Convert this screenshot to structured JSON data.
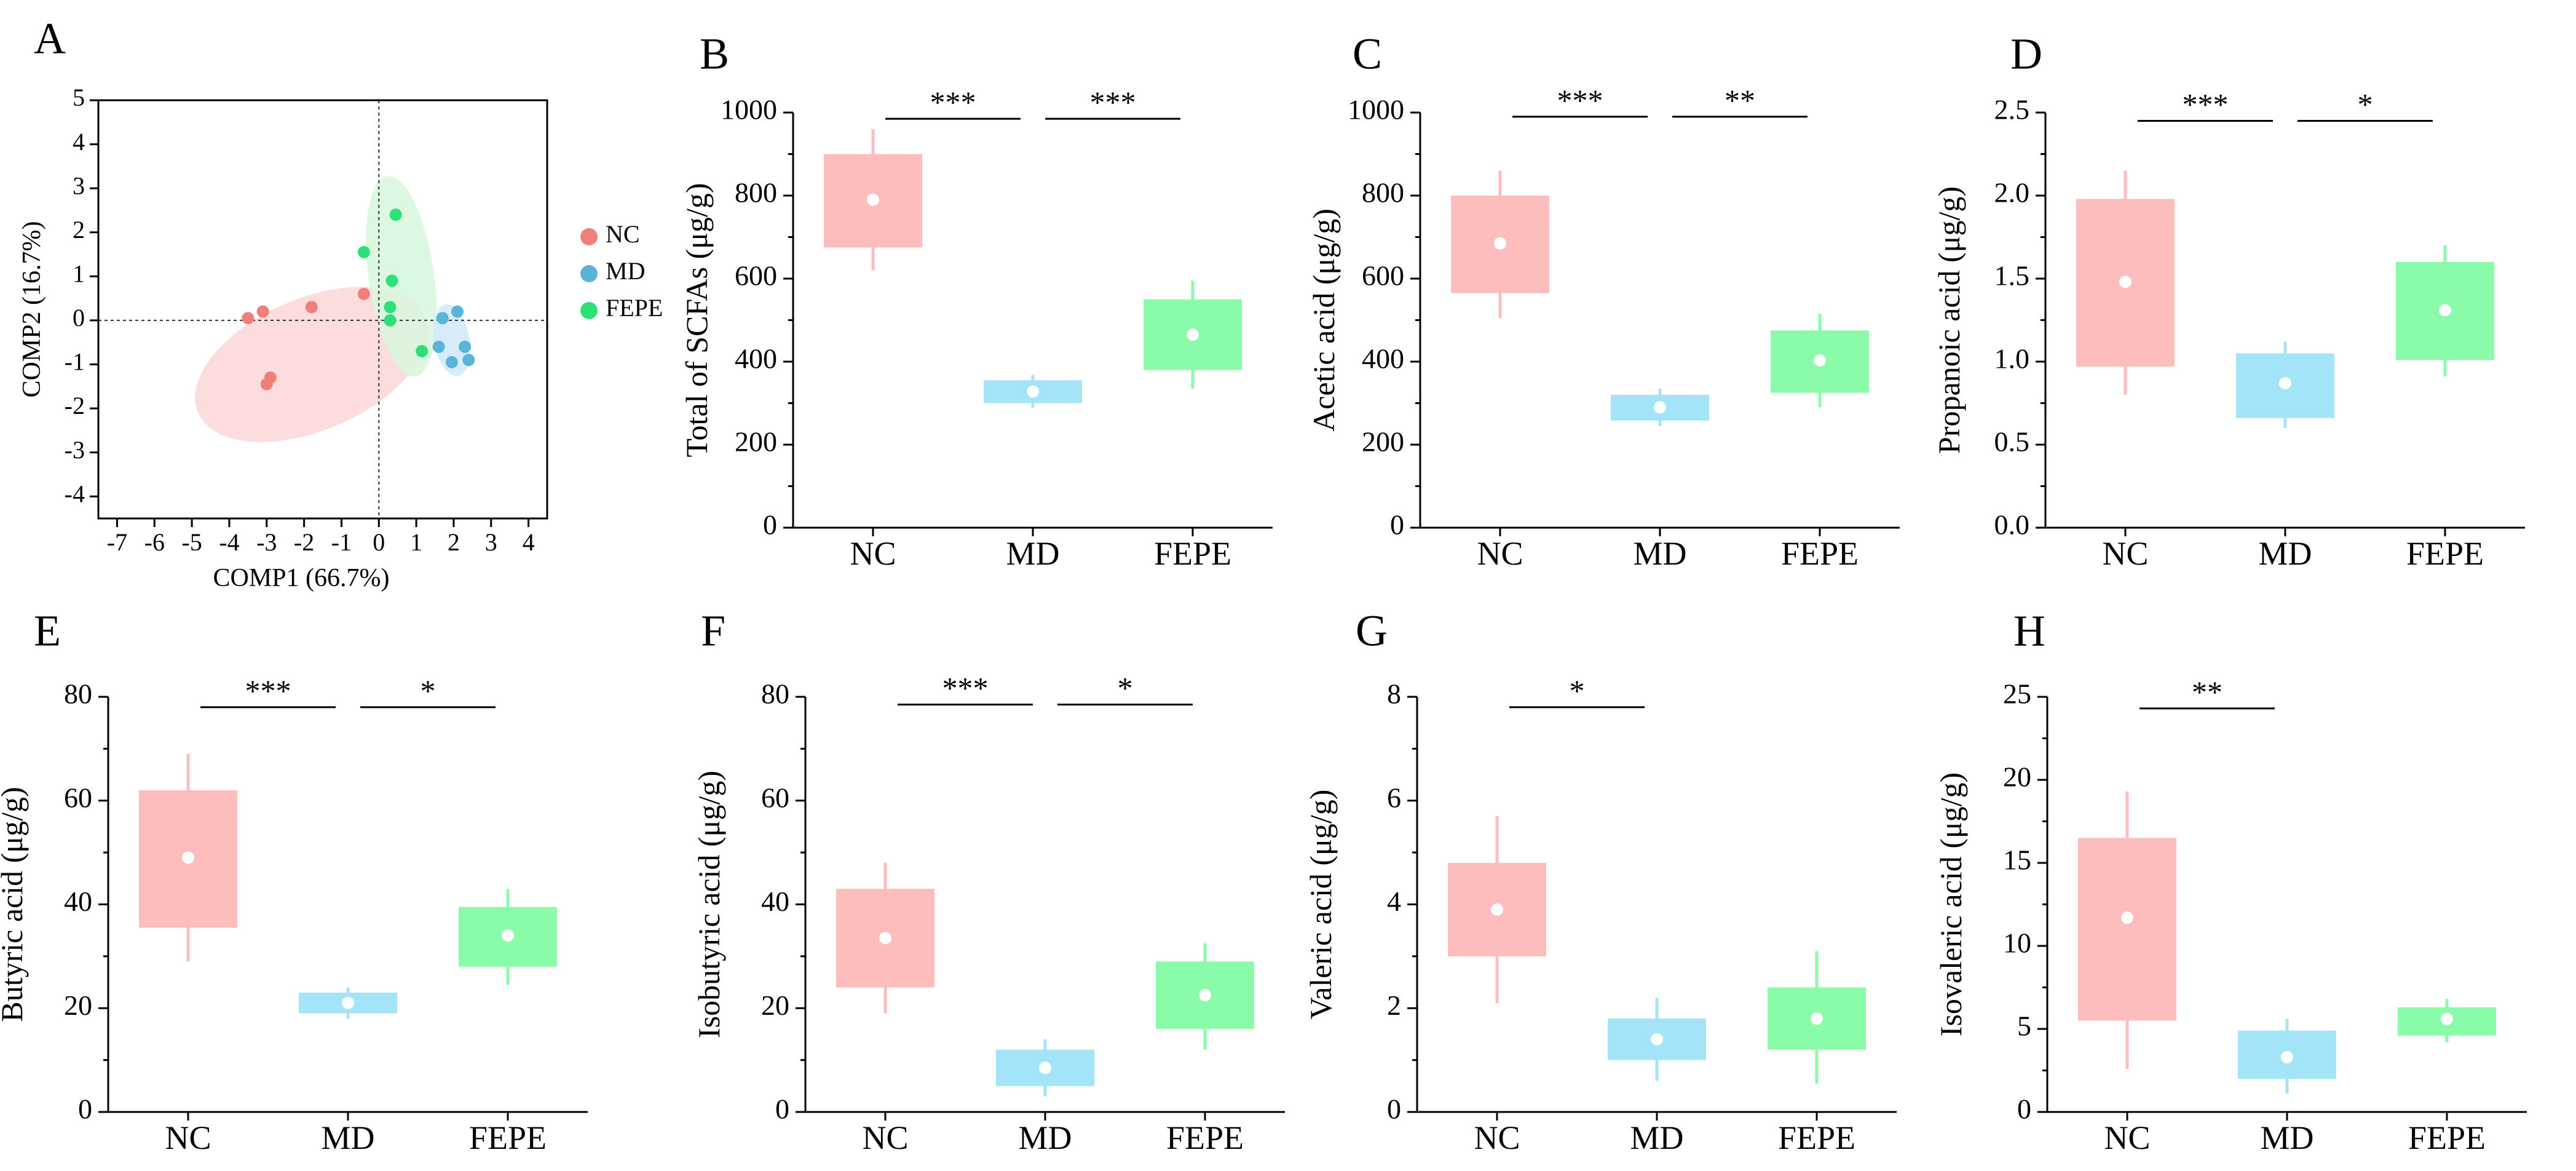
{
  "colors": {
    "NC": "#f07f7a",
    "MD": "#5ab4da",
    "FEPE": "#2ee07a",
    "NC_box": "#fdbdbd",
    "MD_box": "#a4e4f9",
    "FEPE_box": "#8afba8",
    "NC_ellipse": "#fbd6d6",
    "MD_ellipse": "#cfeaf8",
    "FEPE_ellipse": "#d7f7dc"
  },
  "chart_data": [
    {
      "panel": "A",
      "type": "scatter",
      "xlabel": "COMP1 (66.7%)",
      "ylabel": "COMP2 (16.7%)",
      "xlim": [
        -7.5,
        4.5
      ],
      "ylim": [
        -4.5,
        5
      ],
      "xticks": [
        -7,
        -6,
        -5,
        -4,
        -3,
        -2,
        -1,
        0,
        1,
        2,
        3,
        4
      ],
      "yticks": [
        5,
        4,
        3,
        2,
        1,
        0,
        -1,
        -2,
        -3,
        -4
      ],
      "legend": [
        "NC",
        "MD",
        "FEPE"
      ],
      "series": [
        {
          "name": "NC",
          "points": [
            [
              -3.5,
              0.05
            ],
            [
              -3.1,
              0.2
            ],
            [
              -1.8,
              0.3
            ],
            [
              -0.4,
              0.6
            ],
            [
              -2.9,
              -1.3
            ],
            [
              -3.0,
              -1.45
            ]
          ]
        },
        {
          "name": "MD",
          "points": [
            [
              2.1,
              0.2
            ],
            [
              1.7,
              0.05
            ],
            [
              1.6,
              -0.6
            ],
            [
              2.3,
              -0.6
            ],
            [
              1.95,
              -0.95
            ],
            [
              2.4,
              -0.9
            ]
          ]
        },
        {
          "name": "FEPE",
          "points": [
            [
              0.45,
              2.4
            ],
            [
              -0.4,
              1.55
            ],
            [
              0.35,
              0.9
            ],
            [
              0.3,
              0.3
            ],
            [
              0.3,
              0.0
            ],
            [
              1.15,
              -0.7
            ]
          ]
        }
      ],
      "ellipses": [
        {
          "name": "NC",
          "cx": -1.8,
          "cy": -1.0,
          "rx": 6.6,
          "ry": 3.0,
          "angle": 23
        },
        {
          "name": "FEPE",
          "cx": 0.6,
          "cy": 1.0,
          "rx": 1.75,
          "ry": 4.6,
          "angle": 8
        },
        {
          "name": "MD",
          "cx": 1.95,
          "cy": -0.45,
          "rx": 0.95,
          "ry": 1.65,
          "angle": 10
        }
      ]
    },
    {
      "panel": "B",
      "type": "box",
      "ylabel": "Total of SCFAs (μg/g)",
      "ylim": [
        0,
        1000
      ],
      "yticks": [
        0,
        200,
        400,
        600,
        800,
        1000
      ],
      "categories": [
        "NC",
        "MD",
        "FEPE"
      ],
      "boxes": [
        {
          "name": "NC",
          "q1": 675,
          "q3": 900,
          "mean": 790,
          "min": 620,
          "max": 960
        },
        {
          "name": "MD",
          "q1": 300,
          "q3": 355,
          "mean": 328,
          "min": 288,
          "max": 368
        },
        {
          "name": "FEPE",
          "q1": 380,
          "q3": 550,
          "mean": 465,
          "min": 335,
          "max": 595
        }
      ],
      "significance": [
        {
          "from": 0,
          "to": 1,
          "y": 985,
          "label": "***"
        },
        {
          "from": 1,
          "to": 2,
          "y": 985,
          "label": "***"
        }
      ]
    },
    {
      "panel": "C",
      "type": "box",
      "ylabel": "Acetic acid  (μg/g)",
      "ylim": [
        0,
        1000
      ],
      "yticks": [
        0,
        200,
        400,
        600,
        800,
        1000
      ],
      "categories": [
        "NC",
        "MD",
        "FEPE"
      ],
      "boxes": [
        {
          "name": "NC",
          "q1": 565,
          "q3": 800,
          "mean": 685,
          "min": 505,
          "max": 860
        },
        {
          "name": "MD",
          "q1": 258,
          "q3": 320,
          "mean": 290,
          "min": 245,
          "max": 335
        },
        {
          "name": "FEPE",
          "q1": 325,
          "q3": 475,
          "mean": 403,
          "min": 290,
          "max": 515
        }
      ],
      "significance": [
        {
          "from": 0,
          "to": 1,
          "y": 990,
          "label": "***"
        },
        {
          "from": 1,
          "to": 2,
          "y": 990,
          "label": "**"
        }
      ]
    },
    {
      "panel": "D",
      "type": "box",
      "ylabel": "Propanoic acid (μg/g)",
      "ylim": [
        0,
        2.5
      ],
      "yticks": [
        "0.0",
        "0.5",
        "1.0",
        "1.5",
        "2.0",
        "2.5"
      ],
      "categories": [
        "NC",
        "MD",
        "FEPE"
      ],
      "boxes": [
        {
          "name": "NC",
          "q1": 0.97,
          "q3": 1.98,
          "mean": 1.48,
          "min": 0.8,
          "max": 2.15
        },
        {
          "name": "MD",
          "q1": 0.66,
          "q3": 1.05,
          "mean": 0.87,
          "min": 0.6,
          "max": 1.12
        },
        {
          "name": "FEPE",
          "q1": 1.01,
          "q3": 1.6,
          "mean": 1.31,
          "min": 0.91,
          "max": 1.7
        }
      ],
      "significance": [
        {
          "from": 0,
          "to": 1,
          "y": 2.45,
          "label": "***"
        },
        {
          "from": 1,
          "to": 2,
          "y": 2.45,
          "label": "*"
        }
      ]
    },
    {
      "panel": "E",
      "type": "box",
      "ylabel": "Butyric acid (μg/g)",
      "ylim": [
        0,
        80
      ],
      "yticks": [
        0,
        20,
        40,
        60,
        80
      ],
      "categories": [
        "NC",
        "MD",
        "FEPE"
      ],
      "boxes": [
        {
          "name": "NC",
          "q1": 35.5,
          "q3": 62,
          "mean": 49,
          "min": 29,
          "max": 69
        },
        {
          "name": "MD",
          "q1": 19,
          "q3": 23,
          "mean": 21,
          "min": 18,
          "max": 24
        },
        {
          "name": "FEPE",
          "q1": 28,
          "q3": 39.5,
          "mean": 34,
          "min": 24.5,
          "max": 43
        }
      ],
      "significance": [
        {
          "from": 0,
          "to": 1,
          "y": 78,
          "label": "***"
        },
        {
          "from": 1,
          "to": 2,
          "y": 78,
          "label": "*"
        }
      ]
    },
    {
      "panel": "F",
      "type": "box",
      "ylabel": "Isobutyric acid (μg/g)",
      "ylim": [
        0,
        80
      ],
      "yticks": [
        0,
        20,
        40,
        60,
        80
      ],
      "categories": [
        "NC",
        "MD",
        "FEPE"
      ],
      "boxes": [
        {
          "name": "NC",
          "q1": 24,
          "q3": 43,
          "mean": 33.5,
          "min": 19,
          "max": 48
        },
        {
          "name": "MD",
          "q1": 5,
          "q3": 12,
          "mean": 8.5,
          "min": 3,
          "max": 14
        },
        {
          "name": "FEPE",
          "q1": 16,
          "q3": 29,
          "mean": 22.5,
          "min": 12,
          "max": 32.5
        }
      ],
      "significance": [
        {
          "from": 0,
          "to": 1,
          "y": 78.5,
          "label": "***"
        },
        {
          "from": 1,
          "to": 2,
          "y": 78.5,
          "label": "*"
        }
      ]
    },
    {
      "panel": "G",
      "type": "box",
      "ylabel": "Valeric acid (μg/g)",
      "ylim": [
        0,
        8
      ],
      "yticks": [
        0,
        2,
        4,
        6,
        8
      ],
      "categories": [
        "NC",
        "MD",
        "FEPE"
      ],
      "boxes": [
        {
          "name": "NC",
          "q1": 3.0,
          "q3": 4.8,
          "mean": 3.9,
          "min": 2.1,
          "max": 5.7
        },
        {
          "name": "MD",
          "q1": 1.0,
          "q3": 1.8,
          "mean": 1.4,
          "min": 0.6,
          "max": 2.2
        },
        {
          "name": "FEPE",
          "q1": 1.2,
          "q3": 2.4,
          "mean": 1.8,
          "min": 0.55,
          "max": 3.1
        }
      ],
      "significance": [
        {
          "from": 0,
          "to": 1,
          "y": 7.8,
          "label": "*"
        }
      ]
    },
    {
      "panel": "H",
      "type": "box",
      "ylabel": "Isovaleric acid (μg/g)",
      "ylim": [
        0,
        25
      ],
      "yticks": [
        0,
        5,
        10,
        15,
        20,
        25
      ],
      "categories": [
        "NC",
        "MD",
        "FEPE"
      ],
      "boxes": [
        {
          "name": "NC",
          "q1": 5.5,
          "q3": 16.5,
          "mean": 11.7,
          "min": 2.6,
          "max": 19.3
        },
        {
          "name": "MD",
          "q1": 2.0,
          "q3": 4.9,
          "mean": 3.3,
          "min": 1.1,
          "max": 5.6
        },
        {
          "name": "FEPE",
          "q1": 4.6,
          "q3": 6.3,
          "mean": 5.6,
          "min": 4.2,
          "max": 6.8
        }
      ],
      "significance": [
        {
          "from": 0,
          "to": 1,
          "y": 24.3,
          "label": "**"
        }
      ]
    }
  ]
}
